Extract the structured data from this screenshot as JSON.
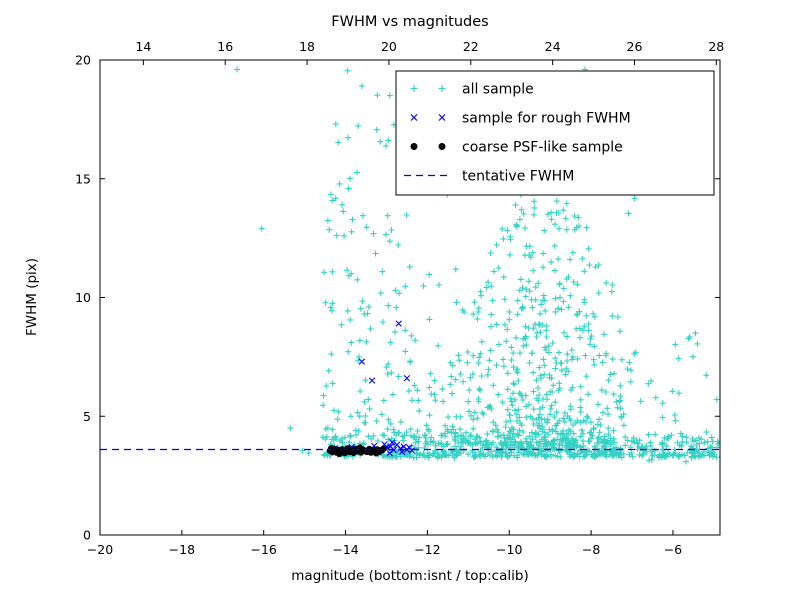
{
  "chart_data": {
    "type": "scatter",
    "title": "FWHM vs magnitudes",
    "xlabel": "magnitude (bottom:isnt / top:calib)",
    "ylabel": "FWHM (pix)",
    "xlim": [
      -20,
      -4.85
    ],
    "ylim": [
      0,
      20
    ],
    "grid": false,
    "legend_position": "upper right",
    "seed": 1337,
    "x_ticks_bottom": {
      "values": [
        -20,
        -18,
        -16,
        -14,
        -12,
        -10,
        -8,
        -6
      ],
      "labels": [
        "−20",
        "−18",
        "−16",
        "−14",
        "−12",
        "−10",
        "−8",
        "−6"
      ]
    },
    "x_ticks_top": {
      "calib_offset": 32.94,
      "values": [
        14,
        16,
        18,
        20,
        22,
        24,
        26,
        28
      ],
      "labels": [
        "14",
        "16",
        "18",
        "20",
        "22",
        "24",
        "26",
        "28"
      ]
    },
    "y_ticks": {
      "values": [
        0,
        5,
        10,
        15,
        20
      ],
      "labels": [
        "0",
        "5",
        "10",
        "15",
        "20"
      ]
    },
    "tentative_fwhm": 3.6,
    "series": [
      {
        "name": "all sample",
        "marker": "plus",
        "color": "#35d2c4",
        "points": [
          [
            -16.65,
            19.6
          ],
          [
            -16.05,
            12.9
          ],
          [
            -15.35,
            4.5
          ],
          [
            -15.05,
            3.55
          ],
          [
            -14.9,
            3.45
          ],
          [
            -13.95,
            19.55
          ],
          [
            -13.6,
            18.9
          ],
          [
            -12.05,
            19.3
          ],
          [
            -8.15,
            19.6
          ],
          [
            -7.9,
            18.8
          ],
          [
            -9.3,
            16.3
          ]
        ],
        "clusters": [
          {
            "n": 430,
            "x0": -13.1,
            "x1": -4.88,
            "y_base": 3.25,
            "y_amp": 0.95,
            "y_pow": 2.6,
            "y_jit": 0.15
          },
          {
            "n": 55,
            "x0": -14.6,
            "x1": -13.05,
            "y_base": 3.3,
            "y_amp": 0.8,
            "y_pow": 2.2,
            "y_jit": 0.1
          },
          {
            "n": 135,
            "x0": -14.55,
            "x1": -12.3,
            "y_base": 3.9,
            "y_amp": 13.3,
            "y_pow": 1.9,
            "y_jit": 0.3
          },
          {
            "n": 640,
            "x_mu": -9.1,
            "x_sigma": 1.15,
            "x0": -12.2,
            "x1": -6.25,
            "y_base": 3.5,
            "y_amp": 11.0,
            "y_pow": 2.1,
            "y_jit": 0.5,
            "env_sigma": 1.7
          },
          {
            "n": 26,
            "x0": -14.2,
            "x1": -6.7,
            "y_base": 13.5,
            "y_amp": 6.3,
            "y_pow": 1.0,
            "y_jit": 0
          },
          {
            "n": 45,
            "x0": -12.35,
            "x1": -10.7,
            "y_base": 3.8,
            "y_amp": 7.5,
            "y_pow": 2.2,
            "y_jit": 0.2
          },
          {
            "n": 28,
            "x0": -6.6,
            "x1": -4.9,
            "y_base": 3.0,
            "y_amp": 5.5,
            "y_pow": 1.8,
            "y_jit": 0.2
          }
        ]
      },
      {
        "name": "sample for rough FWHM",
        "marker": "x",
        "color": "#0000ee",
        "points": [
          [
            -13.6,
            7.3
          ],
          [
            -13.35,
            6.5
          ],
          [
            -12.7,
            8.9
          ],
          [
            -12.5,
            6.6
          ],
          [
            -14.25,
            3.65
          ],
          [
            -14.05,
            3.6
          ],
          [
            -13.85,
            3.7
          ],
          [
            -13.55,
            3.55
          ],
          [
            -13.3,
            3.75
          ],
          [
            -13.18,
            3.6
          ],
          [
            -13.12,
            3.58
          ],
          [
            -13.05,
            3.82
          ],
          [
            -13.0,
            3.7
          ],
          [
            -12.97,
            3.66
          ],
          [
            -12.92,
            3.45
          ],
          [
            -12.9,
            3.73
          ],
          [
            -12.86,
            3.9
          ],
          [
            -12.82,
            3.58
          ],
          [
            -12.74,
            3.8
          ],
          [
            -12.66,
            3.64
          ],
          [
            -12.62,
            3.5
          ],
          [
            -12.58,
            3.72
          ],
          [
            -12.5,
            3.6
          ],
          [
            -12.44,
            3.68
          ],
          [
            -12.38,
            3.56
          ]
        ]
      },
      {
        "name": "coarse PSF-like sample",
        "marker": "dot",
        "color": "#000000",
        "points": [
          [
            -14.38,
            3.55
          ],
          [
            -14.35,
            3.65
          ],
          [
            -14.32,
            3.5
          ],
          [
            -14.28,
            3.62
          ],
          [
            -14.22,
            3.48
          ],
          [
            -14.18,
            3.58
          ],
          [
            -14.15,
            3.42
          ],
          [
            -14.12,
            3.52
          ],
          [
            -14.08,
            3.6
          ],
          [
            -14.02,
            3.45
          ],
          [
            -13.98,
            3.55
          ],
          [
            -13.95,
            3.65
          ],
          [
            -13.9,
            3.5
          ],
          [
            -13.85,
            3.58
          ],
          [
            -13.8,
            3.46
          ],
          [
            -13.76,
            3.62
          ],
          [
            -13.72,
            3.52
          ],
          [
            -13.68,
            3.57
          ],
          [
            -13.65,
            3.68
          ],
          [
            -13.62,
            3.48
          ],
          [
            -13.58,
            3.6
          ],
          [
            -13.52,
            3.55
          ],
          [
            -13.48,
            3.5
          ],
          [
            -13.42,
            3.62
          ],
          [
            -13.38,
            3.47
          ],
          [
            -13.32,
            3.58
          ],
          [
            -13.28,
            3.52
          ],
          [
            -13.25,
            3.44
          ],
          [
            -13.22,
            3.6
          ],
          [
            -13.18,
            3.5
          ],
          [
            -13.12,
            3.56
          ],
          [
            -13.08,
            3.62
          ]
        ]
      },
      {
        "name": "tentative FWHM",
        "marker": "dashed-line",
        "color": "#0000ee",
        "y": 3.6
      }
    ]
  }
}
